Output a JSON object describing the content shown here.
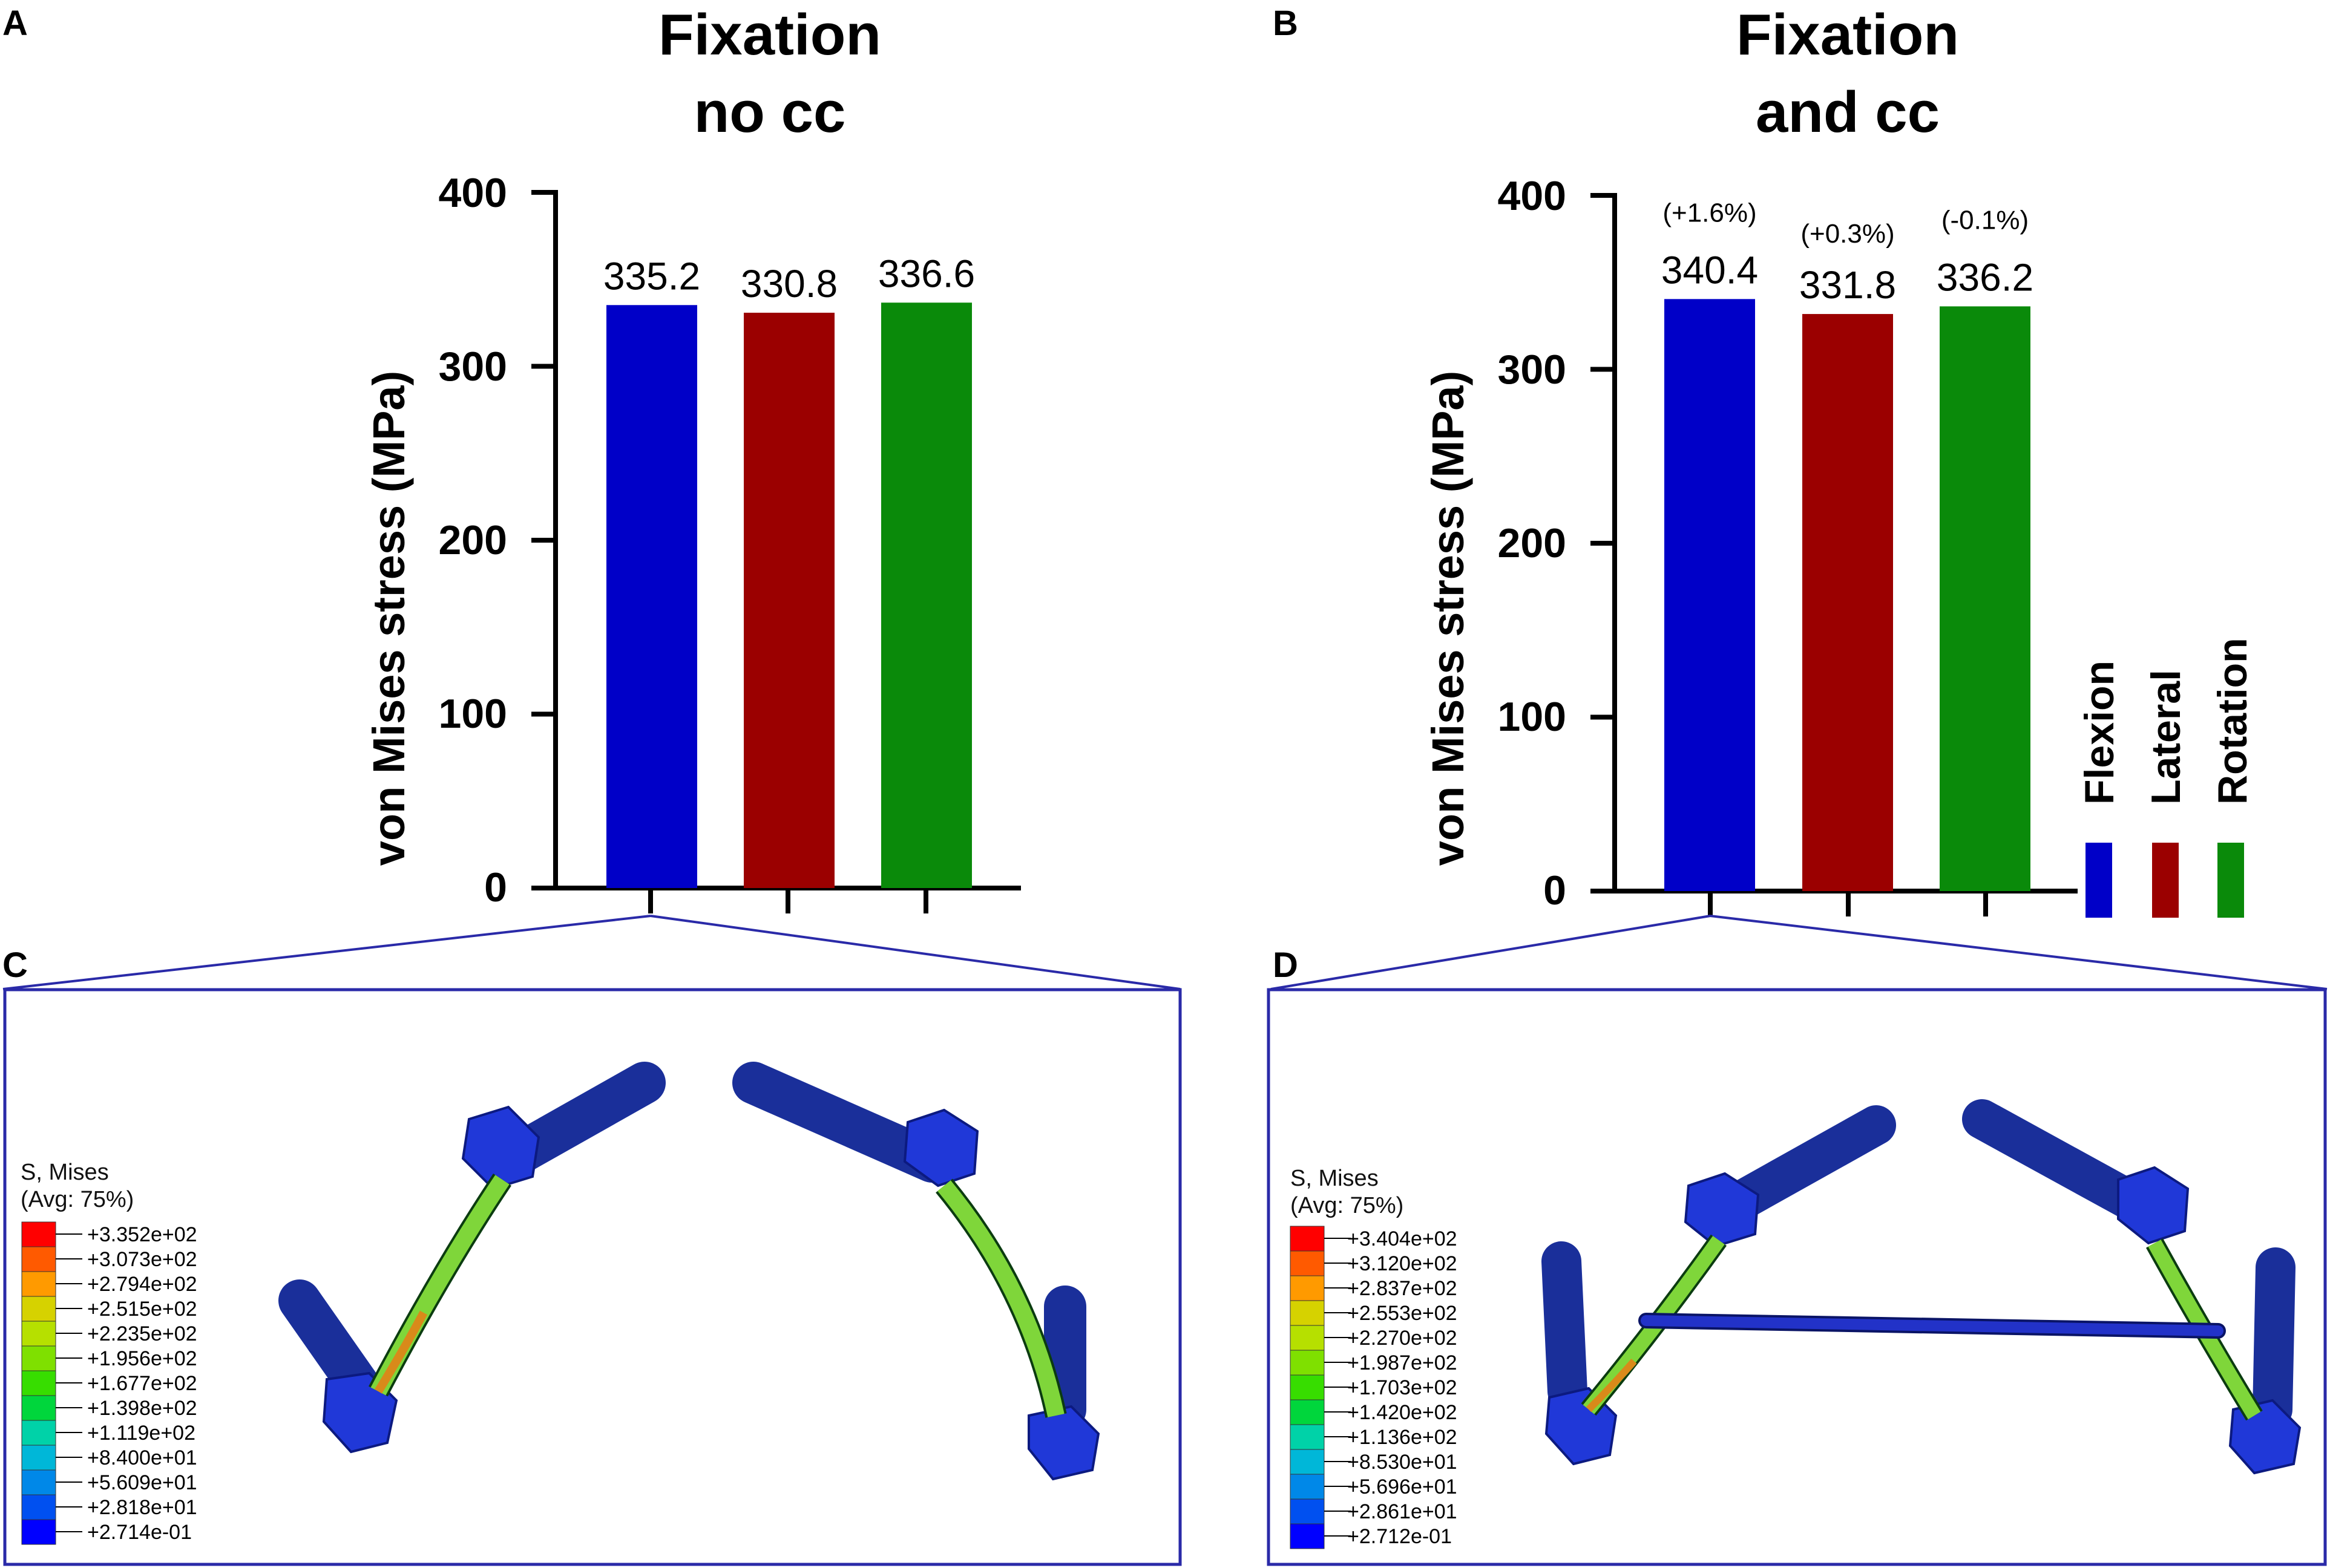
{
  "colors": {
    "flexion": "#0000c8",
    "lateral": "#9b0000",
    "rotation": "#0a8a0a",
    "frame": "#2a2aa8",
    "rod_blue": "#1b2ec8",
    "screw_blue": "#1a38c8"
  },
  "chart_data": [
    {
      "panel": "A",
      "type": "bar",
      "title": [
        "Fixation",
        "no cc"
      ],
      "ylabel": "von  Mises stress (MPa)",
      "ylim": [
        0,
        400
      ],
      "yticks": [
        0,
        100,
        200,
        300,
        400
      ],
      "categories": [
        "Flexion",
        "Lateral",
        "Rotation"
      ],
      "values": [
        335.2,
        330.8,
        336.6
      ],
      "value_labels": [
        "335.2",
        "330.8",
        "336.6"
      ],
      "percent_changes": []
    },
    {
      "panel": "B",
      "type": "bar",
      "title": [
        "Fixation",
        "and cc"
      ],
      "ylabel": "von  Mises stress (MPa)",
      "ylim": [
        0,
        400
      ],
      "yticks": [
        0,
        100,
        200,
        300,
        400
      ],
      "categories": [
        "Flexion",
        "Lateral",
        "Rotation"
      ],
      "values": [
        340.4,
        331.8,
        336.2
      ],
      "value_labels": [
        "340.4",
        "331.8",
        "336.2"
      ],
      "percent_changes": [
        "(+1.6%)",
        "(+0.3%)",
        "(-0.1%)"
      ]
    }
  ],
  "legend": {
    "items": [
      {
        "label": "Flexion",
        "color_key": "flexion"
      },
      {
        "label": "Lateral",
        "color_key": "lateral"
      },
      {
        "label": "Rotation",
        "color_key": "rotation"
      }
    ]
  },
  "fe_panels": [
    {
      "panel": "C",
      "legend_title": [
        "S, Mises",
        "(Avg: 75%)"
      ],
      "scale_values": [
        "+3.352e+02",
        "+3.073e+02",
        "+2.794e+02",
        "+2.515e+02",
        "+2.235e+02",
        "+1.956e+02",
        "+1.677e+02",
        "+1.398e+02",
        "+1.119e+02",
        "+8.400e+01",
        "+5.609e+01",
        "+2.818e+01",
        "+2.714e-01"
      ]
    },
    {
      "panel": "D",
      "legend_title": [
        "S, Mises",
        "(Avg: 75%)"
      ],
      "scale_values": [
        "+3.404e+02",
        "+3.120e+02",
        "+2.837e+02",
        "+2.553e+02",
        "+2.270e+02",
        "+1.987e+02",
        "+1.703e+02",
        "+1.420e+02",
        "+1.136e+02",
        "+8.530e+01",
        "+5.696e+01",
        "+2.861e+01",
        "+2.712e-01"
      ]
    }
  ],
  "colormap": [
    "#ff0000",
    "#ff5a00",
    "#ff9a00",
    "#d6d200",
    "#b6e000",
    "#7fe000",
    "#37dd00",
    "#00d63c",
    "#00d2a8",
    "#00b7d8",
    "#0088e8",
    "#0050f0",
    "#0000ff"
  ]
}
